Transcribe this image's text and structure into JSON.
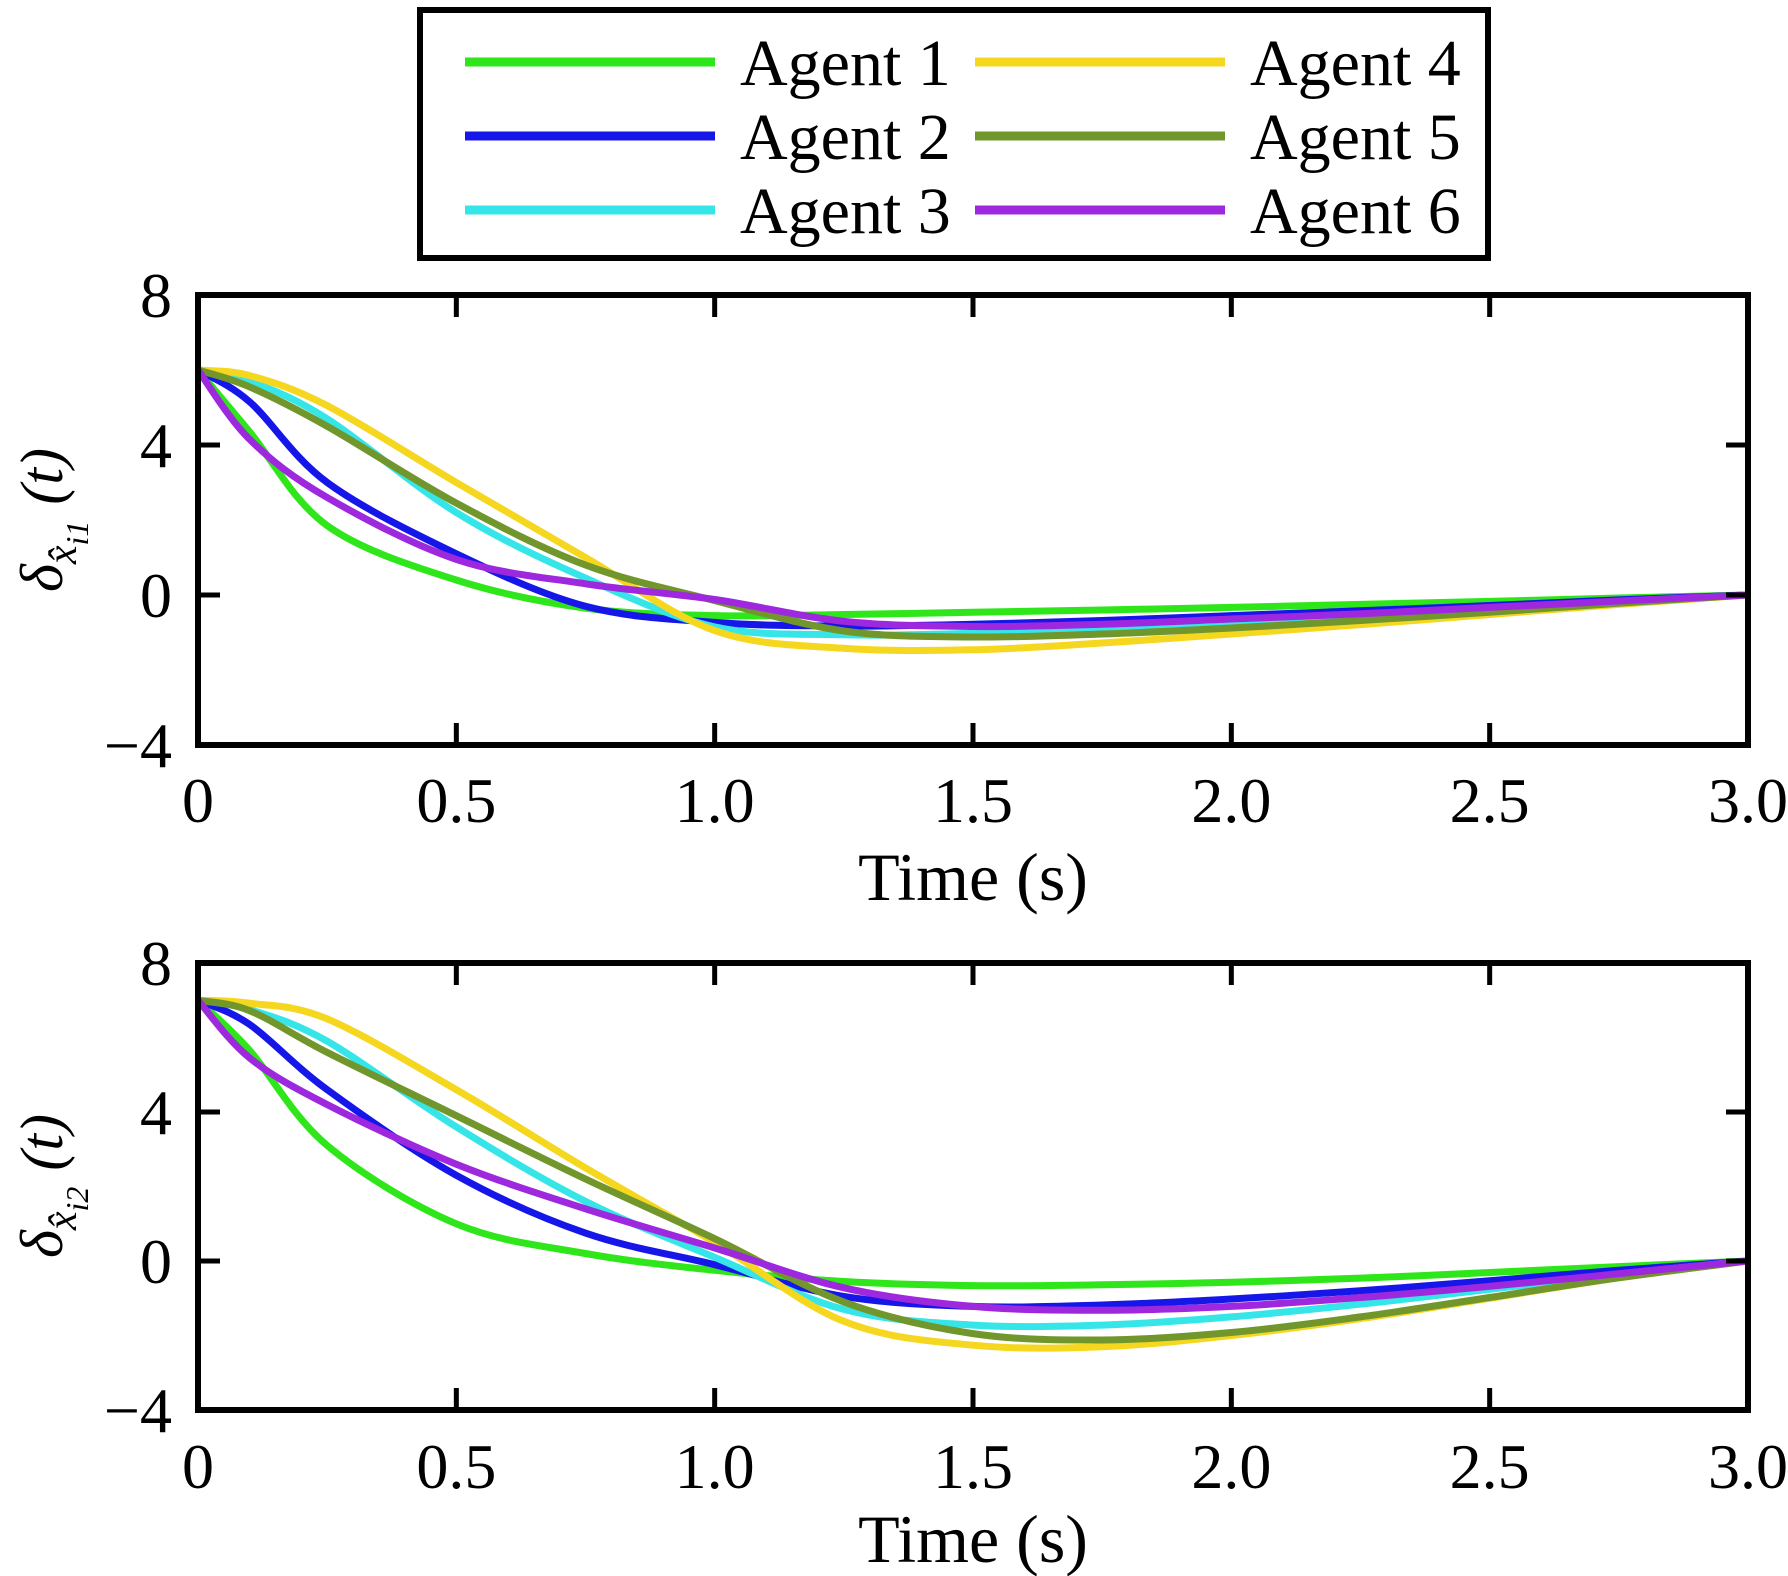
{
  "figure": {
    "background": "#ffffff",
    "axis_color": "#000000"
  },
  "legend": {
    "items": [
      {
        "label": "Agent 1",
        "color": "#2ee619"
      },
      {
        "label": "Agent 2",
        "color": "#1616e8"
      },
      {
        "label": "Agent 3",
        "color": "#35e5e8"
      },
      {
        "label": "Agent 4",
        "color": "#f6d71f"
      },
      {
        "label": "Agent 5",
        "color": "#71962b"
      },
      {
        "label": "Agent 6",
        "color": "#9e28dd"
      }
    ]
  },
  "charts": [
    {
      "ylabel": {
        "delta": "δ",
        "sub": "x̂",
        "subsub": "i1",
        "tail": "(t)"
      },
      "xlabel": "Time (s)"
    },
    {
      "ylabel": {
        "delta": "δ",
        "sub": "x̂",
        "subsub": "i2",
        "tail": "(t)"
      },
      "xlabel": "Time (s)"
    }
  ],
  "chart_data": [
    {
      "type": "line",
      "title": "",
      "xlabel": "Time (s)",
      "ylabel": "delta_xhat_i1(t)",
      "xlim": [
        0,
        3
      ],
      "ylim": [
        -4,
        8
      ],
      "grid": false,
      "legend_position": "above",
      "x_ticks": [
        {
          "v": 0,
          "label": "0"
        },
        {
          "v": 0.5,
          "label": "0.5"
        },
        {
          "v": 1,
          "label": "1.0"
        },
        {
          "v": 1.5,
          "label": "1.5"
        },
        {
          "v": 2,
          "label": "2.0"
        },
        {
          "v": 2.5,
          "label": "2.5"
        },
        {
          "v": 3,
          "label": "3.0"
        }
      ],
      "y_ticks": [
        {
          "v": 8,
          "label": "8"
        },
        {
          "v": 4,
          "label": "4"
        },
        {
          "v": 0,
          "label": "0"
        },
        {
          "v": -4,
          "label": "−4"
        }
      ],
      "x": [
        0,
        0.1,
        0.25,
        0.5,
        0.75,
        1.0,
        1.25,
        1.5,
        1.75,
        2.0,
        2.25,
        2.5,
        2.75,
        3.0
      ],
      "series": [
        {
          "name": "Agent 1",
          "color": "#2ee619",
          "values": [
            6,
            4.35,
            1.85,
            0.4,
            -0.35,
            -0.55,
            -0.52,
            -0.46,
            -0.4,
            -0.33,
            -0.25,
            -0.17,
            -0.08,
            0
          ]
        },
        {
          "name": "Agent 2",
          "color": "#1616e8",
          "values": [
            6,
            5.15,
            3.0,
            1.1,
            -0.3,
            -0.73,
            -0.83,
            -0.78,
            -0.68,
            -0.55,
            -0.42,
            -0.28,
            -0.13,
            0
          ]
        },
        {
          "name": "Agent 3",
          "color": "#35e5e8",
          "values": [
            6,
            5.7,
            4.7,
            2.2,
            0.45,
            -0.85,
            -1.06,
            -1.02,
            -0.9,
            -0.74,
            -0.57,
            -0.39,
            -0.19,
            0
          ]
        },
        {
          "name": "Agent 4",
          "color": "#f6d71f",
          "values": [
            6,
            5.85,
            5.05,
            3.0,
            1.0,
            -0.95,
            -1.42,
            -1.46,
            -1.28,
            -1.04,
            -0.79,
            -0.52,
            -0.25,
            0
          ]
        },
        {
          "name": "Agent 5",
          "color": "#71962b",
          "values": [
            6,
            5.55,
            4.5,
            2.45,
            0.8,
            -0.15,
            -0.96,
            -1.12,
            -1.04,
            -0.88,
            -0.68,
            -0.46,
            -0.22,
            0
          ]
        },
        {
          "name": "Agent 6",
          "color": "#9e28dd",
          "values": [
            6,
            4.15,
            2.6,
            0.95,
            0.3,
            -0.12,
            -0.7,
            -0.84,
            -0.78,
            -0.64,
            -0.5,
            -0.33,
            -0.16,
            0
          ]
        }
      ]
    },
    {
      "type": "line",
      "title": "",
      "xlabel": "Time (s)",
      "ylabel": "delta_xhat_i2(t)",
      "xlim": [
        0,
        3
      ],
      "ylim": [
        -4,
        8
      ],
      "grid": false,
      "legend_position": "shared-above",
      "x_ticks": [
        {
          "v": 0,
          "label": "0"
        },
        {
          "v": 0.5,
          "label": "0.5"
        },
        {
          "v": 1,
          "label": "1.0"
        },
        {
          "v": 1.5,
          "label": "1.5"
        },
        {
          "v": 2,
          "label": "2.0"
        },
        {
          "v": 2.5,
          "label": "2.5"
        },
        {
          "v": 3,
          "label": "3.0"
        }
      ],
      "y_ticks": [
        {
          "v": 8,
          "label": "8"
        },
        {
          "v": 4,
          "label": "4"
        },
        {
          "v": 0,
          "label": "0"
        },
        {
          "v": -4,
          "label": "−4"
        }
      ],
      "x": [
        0,
        0.1,
        0.25,
        0.5,
        0.75,
        1.0,
        1.25,
        1.5,
        1.75,
        2.0,
        2.25,
        2.5,
        2.75,
        3.0
      ],
      "series": [
        {
          "name": "Agent 1",
          "color": "#2ee619",
          "values": [
            7,
            5.65,
            3.1,
            1.0,
            0.2,
            -0.25,
            -0.55,
            -0.66,
            -0.64,
            -0.57,
            -0.46,
            -0.31,
            -0.15,
            0
          ]
        },
        {
          "name": "Agent 2",
          "color": "#1616e8",
          "values": [
            7,
            6.35,
            4.6,
            2.3,
            0.75,
            -0.1,
            -0.95,
            -1.22,
            -1.18,
            -1.02,
            -0.8,
            -0.53,
            -0.25,
            0
          ]
        },
        {
          "name": "Agent 3",
          "color": "#35e5e8",
          "values": [
            7,
            6.75,
            5.9,
            3.6,
            1.6,
            0.1,
            -1.3,
            -1.72,
            -1.72,
            -1.5,
            -1.16,
            -0.76,
            -0.35,
            0
          ]
        },
        {
          "name": "Agent 4",
          "color": "#f6d71f",
          "values": [
            7,
            6.92,
            6.5,
            4.6,
            2.5,
            0.5,
            -1.62,
            -2.26,
            -2.3,
            -2.0,
            -1.55,
            -1.0,
            -0.45,
            0
          ]
        },
        {
          "name": "Agent 5",
          "color": "#71962b",
          "values": [
            7,
            6.72,
            5.6,
            3.9,
            2.2,
            0.6,
            -1.1,
            -1.95,
            -2.12,
            -1.92,
            -1.5,
            -0.98,
            -0.45,
            0
          ]
        },
        {
          "name": "Agent 6",
          "color": "#9e28dd",
          "values": [
            7,
            5.45,
            4.2,
            2.6,
            1.4,
            0.35,
            -0.72,
            -1.22,
            -1.32,
            -1.22,
            -0.98,
            -0.68,
            -0.34,
            0
          ]
        }
      ]
    }
  ]
}
